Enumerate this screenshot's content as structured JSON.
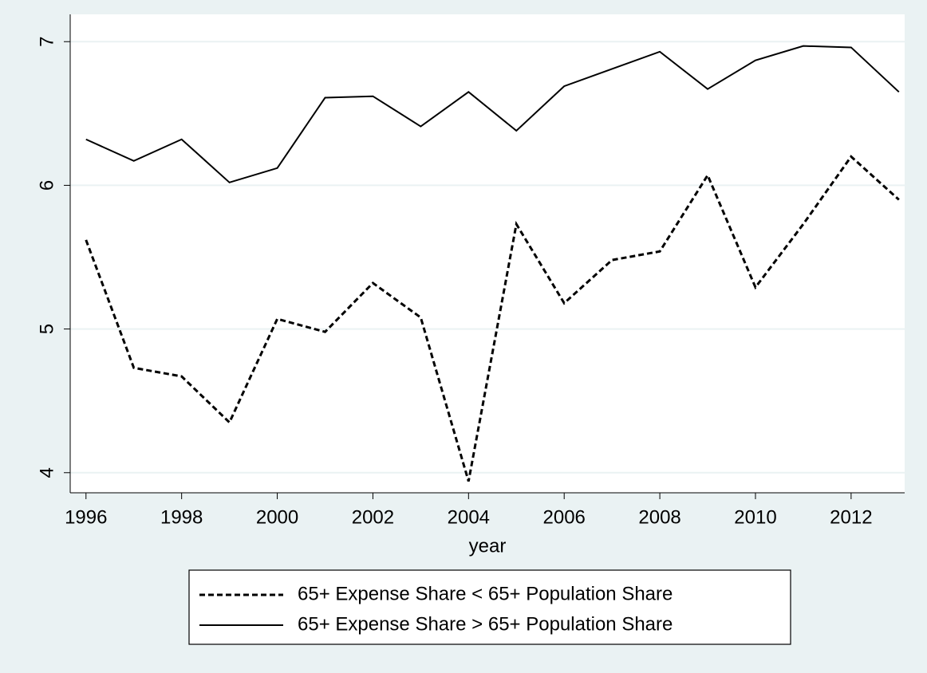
{
  "chart_data": {
    "type": "line",
    "x_label": "year",
    "x": [
      1996,
      1997,
      1998,
      1999,
      2000,
      2001,
      2002,
      2003,
      2004,
      2005,
      2006,
      2007,
      2008,
      2009,
      2010,
      2011,
      2012,
      2013
    ],
    "series": [
      {
        "name": "65+ Expense Share < 65+ Population Share",
        "color": "#000000",
        "dash": true,
        "values": [
          5.62,
          4.73,
          4.67,
          4.35,
          5.07,
          4.98,
          5.32,
          5.08,
          3.94,
          5.73,
          5.18,
          5.48,
          5.54,
          6.07,
          5.29,
          5.73,
          6.2,
          5.9
        ]
      },
      {
        "name": "65+ Expense Share > 65+ Population Share",
        "color": "#000000",
        "dash": false,
        "values": [
          6.32,
          6.17,
          6.32,
          6.02,
          6.12,
          6.61,
          6.62,
          6.41,
          6.65,
          6.38,
          6.69,
          6.81,
          6.93,
          6.67,
          6.87,
          6.97,
          6.96,
          6.65
        ]
      }
    ],
    "xlim": [
      1995.67,
      2013.12
    ],
    "ylim": [
      3.86,
      7.19
    ],
    "xticks": [
      1996,
      1998,
      2000,
      2002,
      2004,
      2006,
      2008,
      2010,
      2012
    ],
    "yticks": [
      4,
      5,
      6,
      7
    ],
    "grid": true
  }
}
